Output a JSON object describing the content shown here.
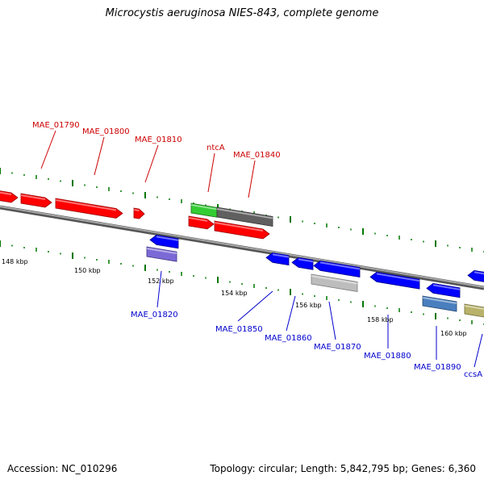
{
  "title": "Microcystis aeruginosa NIES-843, complete genome",
  "footer": {
    "accession": "Accession: NC_010296",
    "summary": "Topology: circular; Length: 5,842,795 bp; Genes: 6,360"
  },
  "colors": {
    "forward_label": "#cc0000",
    "reverse_label": "#0000cc",
    "tick": "#007700",
    "backbone": "#7a7a7a"
  },
  "scale_labels": [
    "148 kbp",
    "150 kbp",
    "152 kbp",
    "154 kbp",
    "156 kbp",
    "158 kbp",
    "160 kbp"
  ],
  "forward_gene_labels": [
    "MAE_01790",
    "MAE_01800",
    "MAE_01810",
    "ntcA",
    "MAE_01840"
  ],
  "reverse_gene_labels": [
    "MAE_01820",
    "MAE_01850",
    "MAE_01860",
    "MAE_01870",
    "MAE_01880",
    "MAE_01890",
    "ccsA"
  ]
}
